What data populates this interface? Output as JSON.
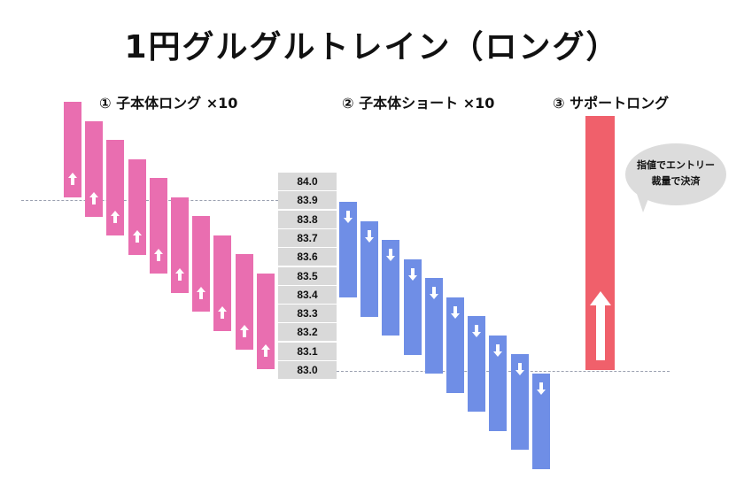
{
  "title": "1円グルグルトレイン（ロング）",
  "sections": {
    "long": "① 子本体ロング ×10",
    "short": "② 子本体ショート ×10",
    "support": "③ サポートロング"
  },
  "prices": [
    "84.0",
    "83.9",
    "83.8",
    "83.7",
    "83.6",
    "83.5",
    "83.4",
    "83.3",
    "83.2",
    "83.1",
    "83.0"
  ],
  "bubble": {
    "line1": "指値でエントリー",
    "line2": "裁量で決済"
  },
  "colors": {
    "long_bar": "#e96eb0",
    "short_bar": "#6f8ee6",
    "support_bar": "#f0606b",
    "price_cell": "#d9d9d9",
    "bubble": "#dcdcdc"
  },
  "icons": {
    "long": "up-arrow-icon",
    "short": "down-arrow-icon",
    "support": "up-arrow-icon"
  }
}
